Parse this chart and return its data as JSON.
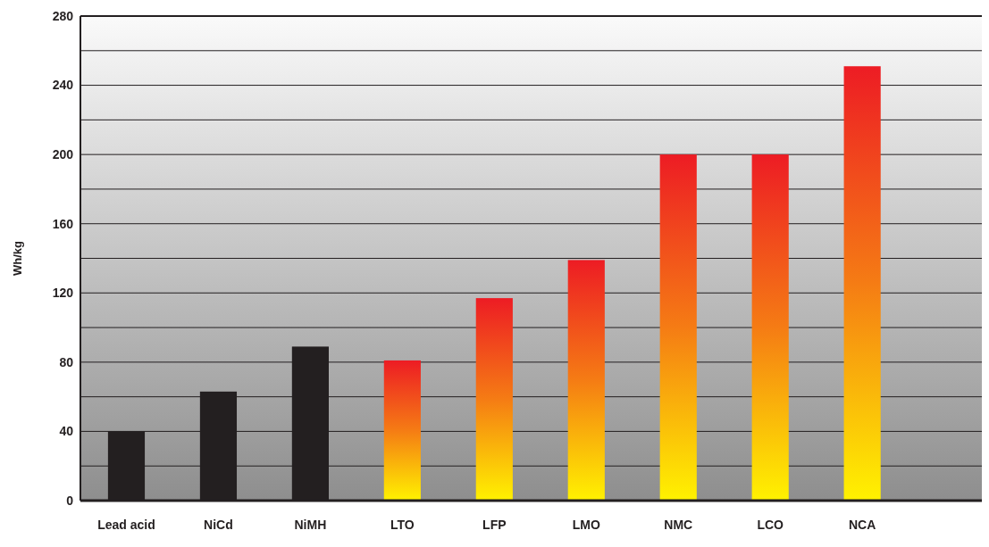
{
  "chart_data": {
    "type": "bar",
    "ylabel": "Wh/kg",
    "categories": [
      "Lead acid",
      "NiCd",
      "NiMH",
      "LTO",
      "LFP",
      "LMO",
      "NMC",
      "LCO",
      "NCA"
    ],
    "values": [
      40,
      63,
      89,
      81,
      117,
      139,
      200,
      200,
      251
    ],
    "colors": [
      "#231f20",
      "#231f20",
      "#231f20",
      "#ed1c24",
      "#ed1c24",
      "#ed1c24",
      "#ed1c24",
      "#ed1c24",
      "#ed1c24"
    ],
    "ylim": [
      0,
      280
    ],
    "yticks": [
      0,
      {
        "value": 20,
        "label": null
      },
      40,
      {
        "value": 60,
        "label": null
      },
      80,
      {
        "value": 100,
        "label": null
      },
      120,
      {
        "value": 140,
        "label": null
      },
      160,
      {
        "value": 180,
        "label": null
      },
      200,
      {
        "value": 220,
        "label": null
      },
      240,
      {
        "value": 260,
        "label": null
      },
      280
    ],
    "grid": true
  }
}
